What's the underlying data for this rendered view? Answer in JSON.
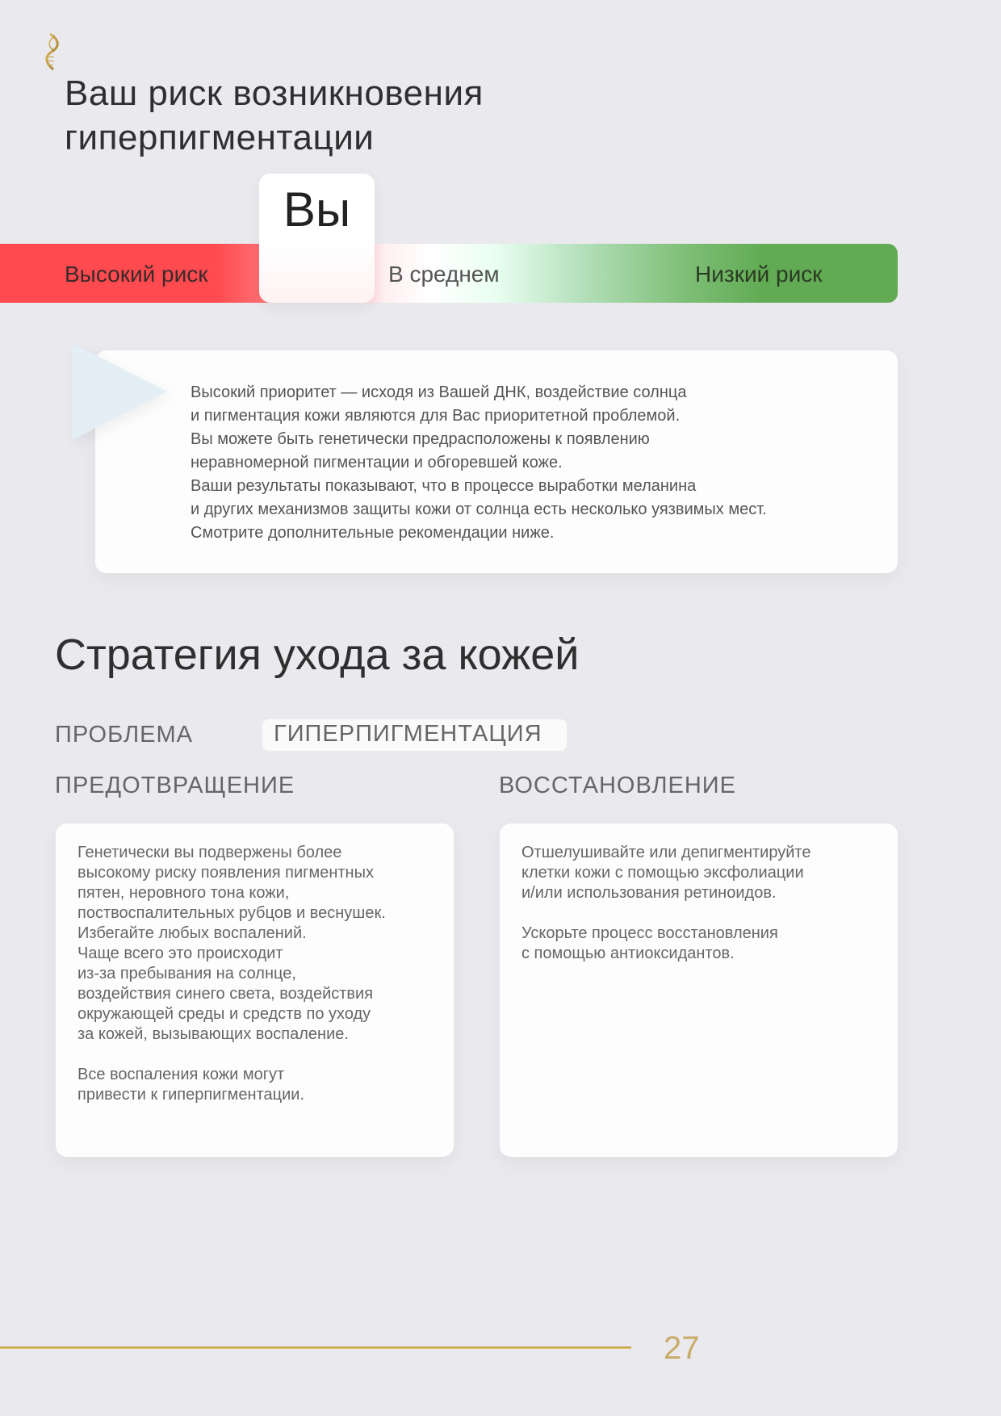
{
  "header": {
    "logo_icon": "gold-dna-helix-logo",
    "title_line1": "Ваш риск возникновения",
    "title_line2": "гиперпигментации"
  },
  "risk_scale": {
    "marker_label": "Вы",
    "marker_position": "between high and average (high-risk side)",
    "labels": [
      "Высокий риск",
      "В среднем",
      "Низкий риск"
    ],
    "colors": {
      "high": "#ff4a4f",
      "average": "#ffffff",
      "low": "#62ab54"
    }
  },
  "result_card": {
    "lines": [
      "Высокий приоритет — исходя из Вашей ДНК, воздействие солнца",
      "и пигментация кожи являются для Вас приоритетной проблемой.",
      "Вы можете быть генетически предрасположены к появлению",
      "неравномерной пигментации и обгоревшей коже.",
      "Ваши результаты показывают, что в процессе выработки меланина",
      "и других механизмов защиты кожи от солнца есть несколько уязвимых мест.",
      "Смотрите дополнительные рекомендации ниже."
    ]
  },
  "strategy": {
    "title": "Стратегия ухода за кожей",
    "problem_label": "ПРОБЛЕМА",
    "problem_value": "ГИПЕРПИГМЕНТАЦИЯ",
    "prevention_label": "ПРЕДОТВРАЩЕНИЕ",
    "recovery_label": "ВОССТАНОВЛЕНИЕ",
    "prevention_paragraphs": [
      [
        "Генетически вы подвержены более",
        "высокому риску появления пигментных",
        "пятен, неровного тона кожи,",
        "поствоспалительных рубцов и веснушек.",
        "Избегайте любых воспалений.",
        "Чаще всего это происходит",
        "из-за пребывания на солнце,",
        "воздействия синего света, воздействия",
        "окружающей среды и средств по уходу",
        "за кожей, вызывающих воспаление."
      ],
      [
        "Все воспаления кожи могут",
        "привести к гиперпигментации."
      ]
    ],
    "recovery_paragraphs": [
      [
        "Отшелушивайте или депигментируйте",
        "клетки кожи с помощью эксфолиации",
        "и/или использования ретиноидов."
      ],
      [
        "Ускорьте процесс восстановления",
        "с помощью антиоксидантов."
      ]
    ]
  },
  "footer": {
    "page_number": "27",
    "accent_color": "#c9a043"
  }
}
